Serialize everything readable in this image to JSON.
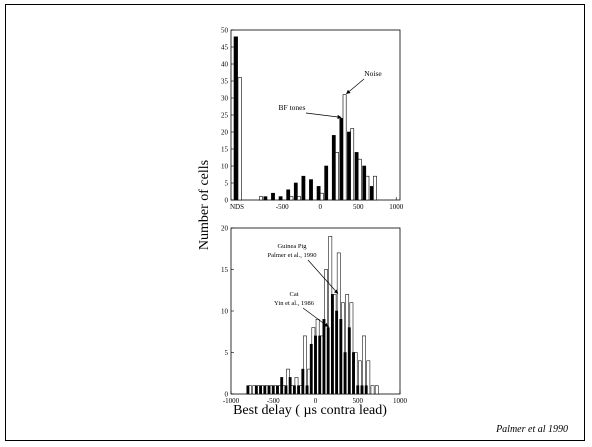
{
  "slide": {
    "citation": "Palmer et al 1990"
  },
  "chart_data": [
    {
      "type": "bar",
      "panel": "top",
      "ylabel": "Number of cells",
      "ylim": [
        0,
        50
      ],
      "y_ticks": [
        0,
        5,
        10,
        15,
        20,
        25,
        30,
        35,
        40,
        45,
        50
      ],
      "x_ticks": [
        -500,
        0,
        500,
        1000
      ],
      "category_label": "NDS",
      "xlim": [
        -950,
        1050
      ],
      "bin_width": 100,
      "series": [
        {
          "name": "BF tones",
          "fill": "black",
          "nds": 48,
          "x": [
            -900,
            -800,
            -700,
            -600,
            -500,
            -400,
            -300,
            -200,
            -100,
            0,
            100,
            200,
            300,
            400,
            500,
            600,
            700
          ],
          "values": [
            0,
            0,
            1,
            2,
            1,
            3,
            5,
            7,
            6,
            4,
            10,
            19,
            24,
            20,
            14,
            10,
            4
          ]
        },
        {
          "name": "Noise",
          "fill": "white",
          "nds": 36,
          "x": [
            -900,
            -800,
            -700,
            -600,
            -500,
            -400,
            -300,
            -200,
            -100,
            0,
            100,
            200,
            300,
            400,
            500,
            600,
            700
          ],
          "values": [
            0,
            1,
            0,
            0,
            0,
            1,
            1,
            0,
            0,
            2,
            0,
            14,
            31,
            21,
            12,
            7,
            7
          ]
        }
      ],
      "annotations": [
        {
          "text": "BF tones",
          "points_to_x": 300
        },
        {
          "text": "Noise",
          "points_to_x": 400
        }
      ]
    },
    {
      "type": "bar",
      "panel": "bottom",
      "xlabel": "Best delay ( µs contra lead)",
      "ylim": [
        0,
        20
      ],
      "y_ticks": [
        0,
        5,
        10,
        15,
        20
      ],
      "xlim": [
        -1000,
        1000
      ],
      "x_ticks": [
        -1000,
        -500,
        0,
        500,
        1000
      ],
      "bin_width": 50,
      "series": [
        {
          "name": "Guinea Pig",
          "fill": "white",
          "x": [
            -775,
            -725,
            -675,
            -625,
            -575,
            -525,
            -475,
            -425,
            -375,
            -325,
            -275,
            -225,
            -175,
            -125,
            -75,
            -25,
            25,
            75,
            125,
            175,
            225,
            275,
            325,
            375,
            425,
            475,
            525,
            575,
            625,
            675,
            725
          ],
          "values": [
            1,
            1,
            1,
            1,
            1,
            1,
            1,
            1,
            1,
            3,
            1,
            2,
            1,
            7,
            3,
            8,
            9,
            7,
            15,
            19,
            12,
            17,
            11,
            12,
            11,
            5,
            4,
            7,
            4,
            1,
            1
          ]
        },
        {
          "name": "Cat",
          "fill": "black",
          "x": [
            -800,
            -700,
            -650,
            -600,
            -550,
            -500,
            -450,
            -400,
            -350,
            -300,
            -250,
            -200,
            -150,
            -100,
            -50,
            0,
            50,
            100,
            150,
            200,
            250,
            300,
            350,
            400,
            450,
            500,
            550,
            600
          ],
          "values": [
            1,
            1,
            1,
            1,
            1,
            1,
            1,
            2,
            1,
            2,
            1,
            1,
            3,
            1,
            6,
            7,
            7,
            9,
            8,
            12,
            10,
            9,
            5,
            8,
            5,
            1,
            1,
            1
          ]
        }
      ],
      "annotations": [
        {
          "lines": [
            "Guinea Pig",
            "Palmer et al., 1990"
          ],
          "points_to_x": 275
        },
        {
          "lines": [
            "Cat",
            "Yin et al., 1986"
          ],
          "points_to_x": 125
        }
      ]
    }
  ]
}
